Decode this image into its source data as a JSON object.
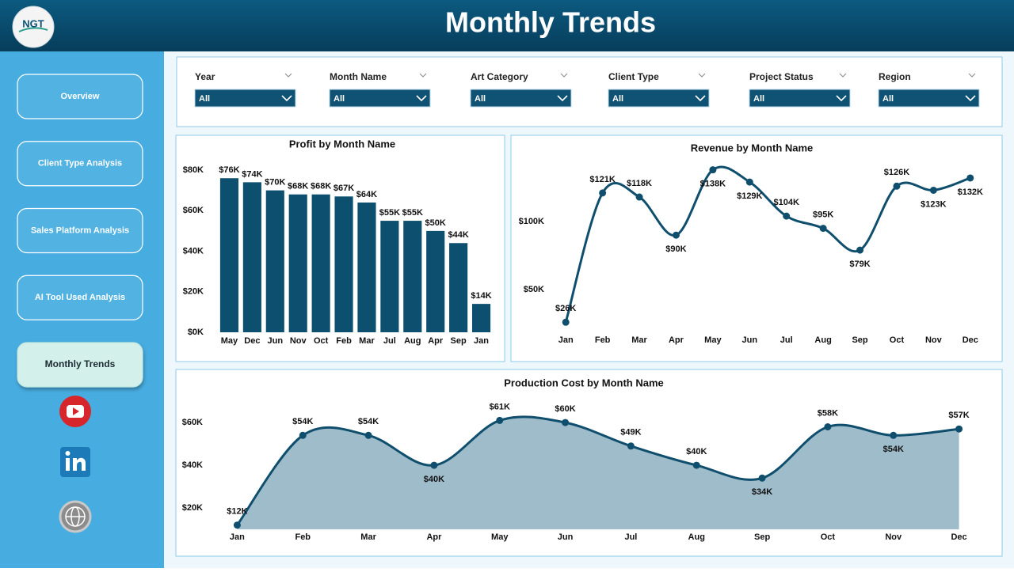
{
  "header": {
    "title": "Monthly Trends",
    "logo": "NGT"
  },
  "nav": [
    "Overview",
    "Client Type Analysis",
    "Sales Platform Analysis",
    "AI Tool Used Analysis",
    "Monthly Trends"
  ],
  "filters": [
    {
      "label": "Year",
      "value": "All"
    },
    {
      "label": "Month Name",
      "value": "All"
    },
    {
      "label": "Art Category",
      "value": "All"
    },
    {
      "label": "Client Type",
      "value": "All"
    },
    {
      "label": "Project Status",
      "value": "All"
    },
    {
      "label": "Region",
      "value": "All"
    }
  ],
  "chart_data": [
    {
      "type": "bar",
      "title": "Profit by Month Name",
      "color": "#0d4f6e",
      "categories": [
        "May",
        "Dec",
        "Jun",
        "Nov",
        "Oct",
        "Feb",
        "Mar",
        "Jul",
        "Aug",
        "Apr",
        "Sep",
        "Jan"
      ],
      "values": [
        76000,
        74000,
        70000,
        68000,
        68000,
        67000,
        64000,
        55000,
        55000,
        50000,
        44000,
        14000
      ],
      "value_labels": [
        "$76K",
        "$74K",
        "$70K",
        "$68K",
        "$68K",
        "$67K",
        "$64K",
        "$55K",
        "$55K",
        "$50K",
        "$44K",
        "$14K"
      ],
      "ylim": [
        0,
        80000
      ],
      "yticks": [
        {
          "value": 0,
          "label": "$0K"
        },
        {
          "value": 20000,
          "label": "$20K"
        },
        {
          "value": 40000,
          "label": "$40K"
        },
        {
          "value": 60000,
          "label": "$60K"
        },
        {
          "value": 80000,
          "label": "$80K"
        }
      ]
    },
    {
      "type": "line",
      "title": "Revenue by Month Name",
      "color": "#0f4f6d",
      "categories": [
        "Jan",
        "Feb",
        "Mar",
        "Apr",
        "May",
        "Jun",
        "Jul",
        "Aug",
        "Sep",
        "Oct",
        "Nov",
        "Dec"
      ],
      "values": [
        26000,
        121000,
        118000,
        90000,
        138000,
        129000,
        104000,
        95000,
        79000,
        126000,
        123000,
        132000
      ],
      "value_labels": [
        "$26K",
        "$121K",
        "$118K",
        "$90K",
        "$138K",
        "$129K",
        "$104K",
        "$95K",
        "$79K",
        "$126K",
        "$123K",
        "$132K"
      ],
      "ylim": [
        20000,
        145000
      ],
      "yticks": [
        {
          "value": 50000,
          "label": "$50K"
        },
        {
          "value": 100000,
          "label": "$100K"
        }
      ]
    },
    {
      "type": "area",
      "title": "Production Cost by Month Name",
      "color": "#0f4f6d",
      "fill": "#9fbccb",
      "categories": [
        "Jan",
        "Feb",
        "Mar",
        "Apr",
        "May",
        "Jun",
        "Jul",
        "Aug",
        "Sep",
        "Oct",
        "Nov",
        "Dec"
      ],
      "values": [
        12000,
        54000,
        54000,
        40000,
        61000,
        60000,
        49000,
        40000,
        34000,
        58000,
        54000,
        57000
      ],
      "value_labels": [
        "$12K",
        "$54K",
        "$54K",
        "$40K",
        "$61K",
        "$60K",
        "$49K",
        "$40K",
        "$34K",
        "$58K",
        "$54K",
        "$57K"
      ],
      "ylim": [
        10000,
        63000
      ],
      "yticks": [
        {
          "value": 20000,
          "label": "$20K"
        },
        {
          "value": 40000,
          "label": "$40K"
        },
        {
          "value": 60000,
          "label": "$60K"
        }
      ]
    }
  ]
}
